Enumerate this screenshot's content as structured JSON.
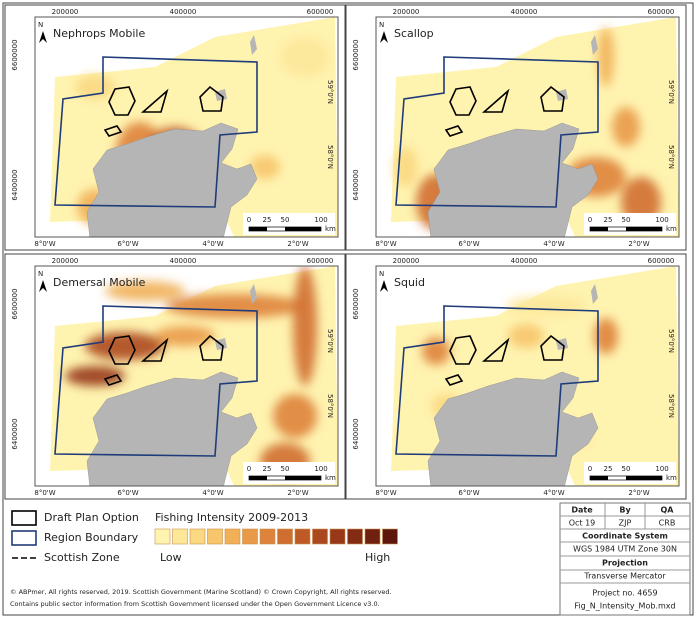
{
  "panels": [
    {
      "title": "Nephrops Mobile"
    },
    {
      "title": "Scallop"
    },
    {
      "title": "Demersal Mobile"
    },
    {
      "title": "Squid"
    }
  ],
  "axes": {
    "top": [
      "200000",
      "400000",
      "600000"
    ],
    "left": [
      "6600000",
      "6400000"
    ],
    "right": [
      "59°0'N",
      "58°0'N"
    ],
    "bottom": [
      "8°0'W",
      "6°0'W",
      "4°0'W",
      "2°0'W"
    ]
  },
  "north": "N",
  "scale_bar": {
    "labels": [
      "0",
      "25",
      "50",
      "100"
    ],
    "unit": "km"
  },
  "legend": {
    "items": [
      "Draft Plan Option",
      "Region Boundary",
      "Scottish Zone"
    ],
    "intensity_title": "Fishing Intensity 2009-2013",
    "low": "Low",
    "high": "High"
  },
  "credits": [
    "© ABPmer, All rights reserved, 2019. Scottish Government (Marine Scotland) © Crown Copyright, All rights reserved.",
    "Contains public sector information from Scottish Government  licensed under the Open Government Licence v3.0."
  ],
  "info": {
    "header": [
      "Date",
      "By",
      "QA"
    ],
    "values": [
      "Oct 19",
      "ZJP",
      "CRB"
    ],
    "coordinate_title": "Coordinate System",
    "coordinate": "WGS 1984 UTM Zone 30N",
    "projection_title": "Projection",
    "projection": "Transverse Mercator",
    "project": "Project no. 4659",
    "file": "Fig_N_Intensity_Mob.mxd"
  }
}
